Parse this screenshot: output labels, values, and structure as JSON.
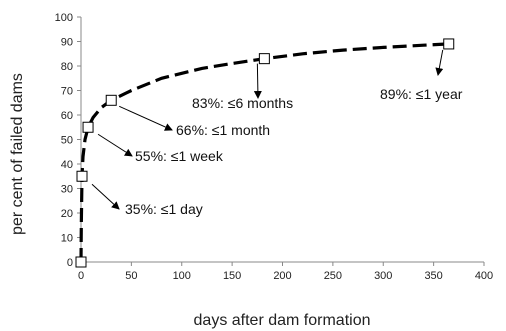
{
  "chart_data": {
    "type": "scatter",
    "title": "",
    "xlabel": "days after dam formation",
    "ylabel": "per cent of failed dams",
    "xlim": [
      0,
      400
    ],
    "ylim": [
      0,
      100
    ],
    "x_ticks": [
      0,
      50,
      100,
      150,
      200,
      250,
      300,
      350,
      400
    ],
    "y_ticks": [
      0,
      10,
      20,
      30,
      40,
      50,
      60,
      70,
      80,
      90,
      100
    ],
    "grid": false,
    "legend": "none",
    "line_style": "dashed",
    "line_color": "#000000",
    "marker": "open-square",
    "points": [
      {
        "x": 0,
        "y": 0
      },
      {
        "x": 1,
        "y": 35
      },
      {
        "x": 7,
        "y": 55
      },
      {
        "x": 30,
        "y": 66
      },
      {
        "x": 182,
        "y": 83
      },
      {
        "x": 365,
        "y": 89
      }
    ],
    "curve": [
      [
        0,
        0
      ],
      [
        0.3,
        15
      ],
      [
        1,
        35
      ],
      [
        2,
        43
      ],
      [
        4,
        50
      ],
      [
        7,
        55
      ],
      [
        12,
        59
      ],
      [
        20,
        63
      ],
      [
        30,
        66
      ],
      [
        50,
        70
      ],
      [
        80,
        75
      ],
      [
        120,
        79
      ],
      [
        150,
        81
      ],
      [
        182,
        83
      ],
      [
        220,
        85
      ],
      [
        260,
        86.5
      ],
      [
        300,
        87.6
      ],
      [
        340,
        88.5
      ],
      [
        365,
        89
      ]
    ],
    "annotations": [
      {
        "text": "35%: ≤1 day",
        "point_index": 1
      },
      {
        "text": "55%: ≤1 week",
        "point_index": 2
      },
      {
        "text": "66%: ≤1 month",
        "point_index": 3
      },
      {
        "text": "83%: ≤6 months",
        "point_index": 4
      },
      {
        "text": "89%: ≤1 year",
        "point_index": 5
      }
    ]
  }
}
